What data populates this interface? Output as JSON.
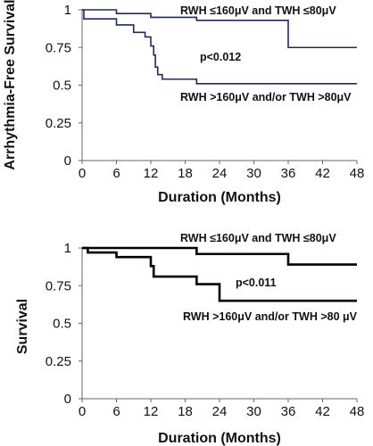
{
  "chart_data": [
    {
      "type": "line",
      "step": true,
      "xlabel": "Duration (Months)",
      "ylabel": "Arrhythmia-Free Survival",
      "xlim": [
        0,
        48
      ],
      "ylim": [
        0,
        1
      ],
      "xticks": [
        "0",
        "6",
        "12",
        "18",
        "24",
        "30",
        "36",
        "42",
        "48"
      ],
      "yticks": [
        "0",
        "0.25",
        "0.5",
        "0.75",
        "1"
      ],
      "annotations": {
        "top": "RWH ≤160μV and TWH ≤80μV",
        "pvalue": "p<0.012",
        "bottom": "RWH >160μV and/or TWH >80μV"
      },
      "series": [
        {
          "color": "#1f2b5b",
          "points": [
            [
              0,
              1
            ],
            [
              6,
              1
            ],
            [
              6,
              0.975
            ],
            [
              12,
              0.975
            ],
            [
              12,
              0.95
            ],
            [
              20,
              0.95
            ],
            [
              20,
              0.93
            ],
            [
              36,
              0.93
            ],
            [
              36,
              0.75
            ],
            [
              48,
              0.75
            ]
          ]
        },
        {
          "color": "#1f2b5b",
          "points": [
            [
              0,
              1
            ],
            [
              0.3,
              1
            ],
            [
              0.3,
              0.94
            ],
            [
              6,
              0.94
            ],
            [
              6,
              0.9
            ],
            [
              9,
              0.9
            ],
            [
              9,
              0.85
            ],
            [
              11,
              0.85
            ],
            [
              11,
              0.82
            ],
            [
              12,
              0.82
            ],
            [
              12,
              0.76
            ],
            [
              12.5,
              0.76
            ],
            [
              12.5,
              0.7
            ],
            [
              12.8,
              0.7
            ],
            [
              12.8,
              0.62
            ],
            [
              13.2,
              0.62
            ],
            [
              13.2,
              0.57
            ],
            [
              14,
              0.57
            ],
            [
              14,
              0.54
            ],
            [
              20,
              0.54
            ],
            [
              20,
              0.51
            ],
            [
              48,
              0.51
            ]
          ]
        }
      ]
    },
    {
      "type": "line",
      "step": true,
      "xlabel": "Duration (Months)",
      "ylabel": "Survival",
      "xlim": [
        0,
        48
      ],
      "ylim": [
        0,
        1
      ],
      "xticks": [
        "0",
        "6",
        "12",
        "18",
        "24",
        "30",
        "36",
        "42",
        "48"
      ],
      "yticks": [
        "0",
        "0.25",
        "0.5",
        "0.75",
        "1"
      ],
      "annotations": {
        "top": "RWH ≤160μV and TWH ≤80μV",
        "pvalue": "p<0.011",
        "bottom": "RWH >160μV and/or TWH >80 μV"
      },
      "series": [
        {
          "color": "#000000",
          "points": [
            [
              0,
              1
            ],
            [
              20,
              1
            ],
            [
              20,
              0.96
            ],
            [
              36,
              0.96
            ],
            [
              36,
              0.89
            ],
            [
              48,
              0.89
            ]
          ]
        },
        {
          "color": "#000000",
          "points": [
            [
              0,
              1
            ],
            [
              1,
              1
            ],
            [
              1,
              0.97
            ],
            [
              6,
              0.97
            ],
            [
              6,
              0.94
            ],
            [
              12,
              0.94
            ],
            [
              12,
              0.88
            ],
            [
              12.5,
              0.88
            ],
            [
              12.5,
              0.81
            ],
            [
              20,
              0.81
            ],
            [
              20,
              0.76
            ],
            [
              24,
              0.76
            ],
            [
              24,
              0.65
            ],
            [
              48,
              0.65
            ]
          ]
        }
      ]
    }
  ]
}
